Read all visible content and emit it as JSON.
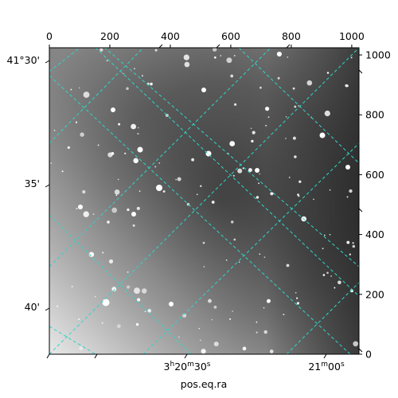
{
  "chart_data": {
    "type": "heatmap",
    "title": "",
    "xlabel": "pos.eq.ra",
    "ylabel": "",
    "pixel_axes": {
      "x_range": [
        0,
        1024
      ],
      "y_range": [
        0,
        1024
      ],
      "x_ticks": [
        0,
        200,
        400,
        600,
        800,
        1000
      ],
      "y_ticks": [
        0,
        200,
        400,
        600,
        800,
        1000
      ]
    },
    "world_axes": {
      "ra_tick_labels": [
        {
          "text": "3h20m30s",
          "main": "3",
          "h": "h",
          "m_val": "20",
          "m": "m",
          "s_val": "30",
          "s": "s"
        },
        {
          "text": "21m00s",
          "main": "21",
          "m": "m",
          "s_val": "00",
          "s": "s"
        }
      ],
      "dec_tick_labels": [
        "41°30'",
        "35'",
        "40'"
      ]
    },
    "grid": true,
    "grid_color": "#30d5c8",
    "colormap": "gray"
  }
}
